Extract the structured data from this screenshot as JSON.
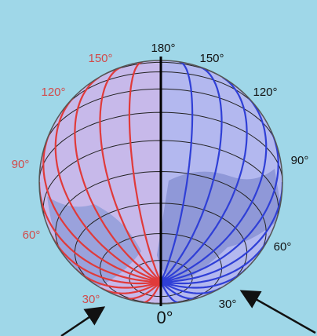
{
  "labels": {
    "top": "180°",
    "bottom": "0°",
    "west": [
      "150°",
      "120°",
      "90°",
      "60°",
      "30°"
    ],
    "east": [
      "150°",
      "120°",
      "90°",
      "60°",
      "30°"
    ]
  }
}
